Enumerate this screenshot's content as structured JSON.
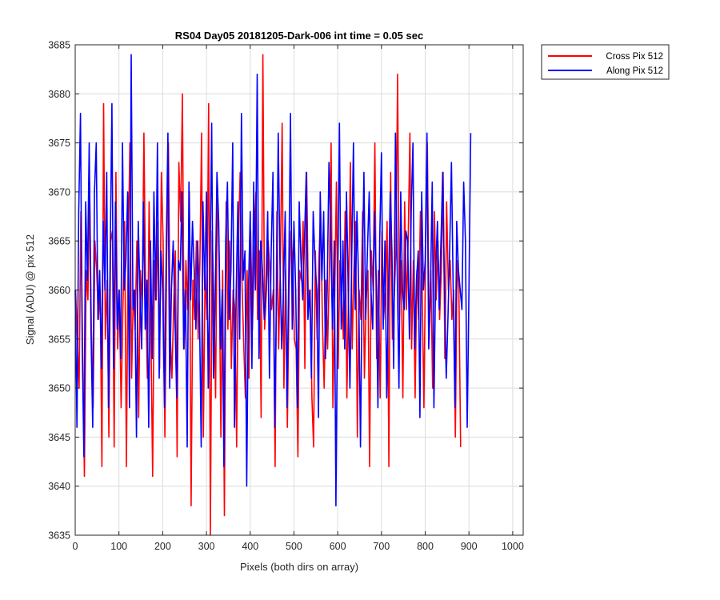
{
  "chart_data": {
    "type": "line",
    "title": "RS04 Day05 20181205-Dark-006 int time = 0.05 sec",
    "xlabel": "Pixels (both dirs on array)",
    "ylabel": "Signal (ADU) @ pix 512",
    "xlim": [
      0,
      1024
    ],
    "ylim": [
      3635,
      3685
    ],
    "x_ticks": [
      0,
      100,
      200,
      300,
      400,
      500,
      600,
      700,
      800,
      900,
      1000
    ],
    "y_ticks": [
      3635,
      3640,
      3645,
      3650,
      3655,
      3660,
      3665,
      3670,
      3675,
      3680,
      3685
    ],
    "x_tick_labels": [
      "0",
      "100",
      "200",
      "300",
      "400",
      "500",
      "600",
      "700",
      "800",
      "900",
      "1000"
    ],
    "y_tick_labels": [
      "3635",
      "3640",
      "3645",
      "3650",
      "3655",
      "3660",
      "3665",
      "3670",
      "3675",
      "3680",
      "3685"
    ],
    "grid": true,
    "legend_position": "outside-top-right",
    "series": [
      {
        "name": "Cross Pix 512",
        "color": "#ff0000",
        "x_start": 1,
        "x_step": 4,
        "values": [
          3660,
          3655,
          3650,
          3668,
          3654,
          3641,
          3662,
          3659,
          3671,
          3656,
          3648,
          3665,
          3662,
          3657,
          3660,
          3642,
          3679,
          3655,
          3661,
          3645,
          3665,
          3666,
          3644,
          3672,
          3654,
          3660,
          3648,
          3658,
          3667,
          3642,
          3664,
          3675,
          3651,
          3660,
          3656,
          3665,
          3647,
          3662,
          3658,
          3676,
          3660,
          3651,
          3669,
          3656,
          3641,
          3663,
          3659,
          3667,
          3652,
          3672,
          3665,
          3645,
          3663,
          3675,
          3656,
          3651,
          3658,
          3664,
          3643,
          3673,
          3667,
          3680,
          3654,
          3663,
          3658,
          3670,
          3638,
          3661,
          3657,
          3665,
          3655,
          3663,
          3676,
          3645,
          3662,
          3657,
          3679,
          3635,
          3666,
          3659,
          3649,
          3671,
          3663,
          3645,
          3662,
          3637,
          3669,
          3656,
          3665,
          3652,
          3660,
          3658,
          3644,
          3665,
          3672,
          3661,
          3655,
          3649,
          3662,
          3651,
          3666,
          3656,
          3663,
          3670,
          3657,
          3664,
          3647,
          3684,
          3656,
          3660,
          3665,
          3662,
          3658,
          3660,
          3642,
          3668,
          3654,
          3663,
          3677,
          3650,
          3662,
          3646,
          3660,
          3666,
          3663,
          3655,
          3654,
          3643,
          3662,
          3661,
          3667,
          3652,
          3672,
          3658,
          3660,
          3649,
          3644,
          3664,
          3655,
          3663,
          3668,
          3657,
          3650,
          3661,
          3654,
          3662,
          3675,
          3648,
          3659,
          3671,
          3652,
          3663,
          3660,
          3655,
          3668,
          3649,
          3660,
          3673,
          3654,
          3662,
          3667,
          3645,
          3660,
          3657,
          3668,
          3651,
          3659,
          3662,
          3642,
          3664,
          3660,
          3675,
          3653,
          3662,
          3649,
          3666,
          3657,
          3660,
          3667,
          3642,
          3672,
          3655,
          3659,
          3664,
          3682,
          3657,
          3663,
          3649,
          3669,
          3658,
          3665,
          3676,
          3654,
          3663,
          3649,
          3662,
          3657,
          3668,
          3660,
          3648,
          3664,
          3675,
          3655,
          3662,
          3650,
          3668,
          3659,
          3665,
          3657,
          3662,
          3672,
          3653,
          3669,
          3660,
          3663,
          3657,
          3660,
          3645,
          3663,
          3660,
          3644
        ]
      },
      {
        "name": "Along Pix 512",
        "color": "#0000ff",
        "x_start": 0,
        "x_step": 4,
        "values": [
          3660,
          3646,
          3668,
          3678,
          3654,
          3643,
          3669,
          3661,
          3675,
          3656,
          3646,
          3670,
          3675,
          3657,
          3662,
          3652,
          3667,
          3660,
          3672,
          3648,
          3664,
          3679,
          3652,
          3669,
          3656,
          3660,
          3653,
          3675,
          3660,
          3663,
          3670,
          3648,
          3684,
          3658,
          3660,
          3645,
          3667,
          3660,
          3654,
          3669,
          3656,
          3661,
          3646,
          3665,
          3653,
          3670,
          3659,
          3675,
          3651,
          3664,
          3660,
          3648,
          3664,
          3676,
          3650,
          3660,
          3665,
          3657,
          3649,
          3663,
          3662,
          3670,
          3654,
          3660,
          3644,
          3671,
          3659,
          3667,
          3662,
          3656,
          3665,
          3658,
          3644,
          3669,
          3660,
          3670,
          3650,
          3661,
          3677,
          3651,
          3659,
          3672,
          3667,
          3654,
          3660,
          3642,
          3665,
          3671,
          3657,
          3662,
          3675,
          3646,
          3660,
          3669,
          3655,
          3678,
          3661,
          3664,
          3640,
          3660,
          3668,
          3652,
          3671,
          3660,
          3682,
          3653,
          3665,
          3662,
          3657,
          3660,
          3668,
          3651,
          3664,
          3672,
          3646,
          3659,
          3676,
          3663,
          3654,
          3660,
          3668,
          3648,
          3661,
          3678,
          3656,
          3667,
          3660,
          3648,
          3669,
          3663,
          3659,
          3665,
          3672,
          3657,
          3660,
          3651,
          3668,
          3663,
          3660,
          3647,
          3670,
          3661,
          3668,
          3653,
          3660,
          3673,
          3666,
          3656,
          3665,
          3638,
          3660,
          3677,
          3656,
          3665,
          3654,
          3670,
          3660,
          3650,
          3663,
          3675,
          3658,
          3668,
          3660,
          3644,
          3661,
          3672,
          3657,
          3664,
          3670,
          3660,
          3656,
          3668,
          3661,
          3648,
          3665,
          3674,
          3656,
          3665,
          3649,
          3660,
          3670,
          3664,
          3652,
          3676,
          3662,
          3650,
          3670,
          3660,
          3658,
          3666,
          3665,
          3655,
          3668,
          3675,
          3654,
          3661,
          3664,
          3647,
          3670,
          3660,
          3663,
          3676,
          3654,
          3660,
          3671,
          3648,
          3662,
          3667,
          3658,
          3665,
          3672,
          3660,
          3651,
          3657,
          3664,
          3673,
          3660,
          3648,
          3667,
          3662,
          3660,
          3658,
          3671,
          3665,
          3646,
          3660,
          3676
        ]
      }
    ]
  }
}
